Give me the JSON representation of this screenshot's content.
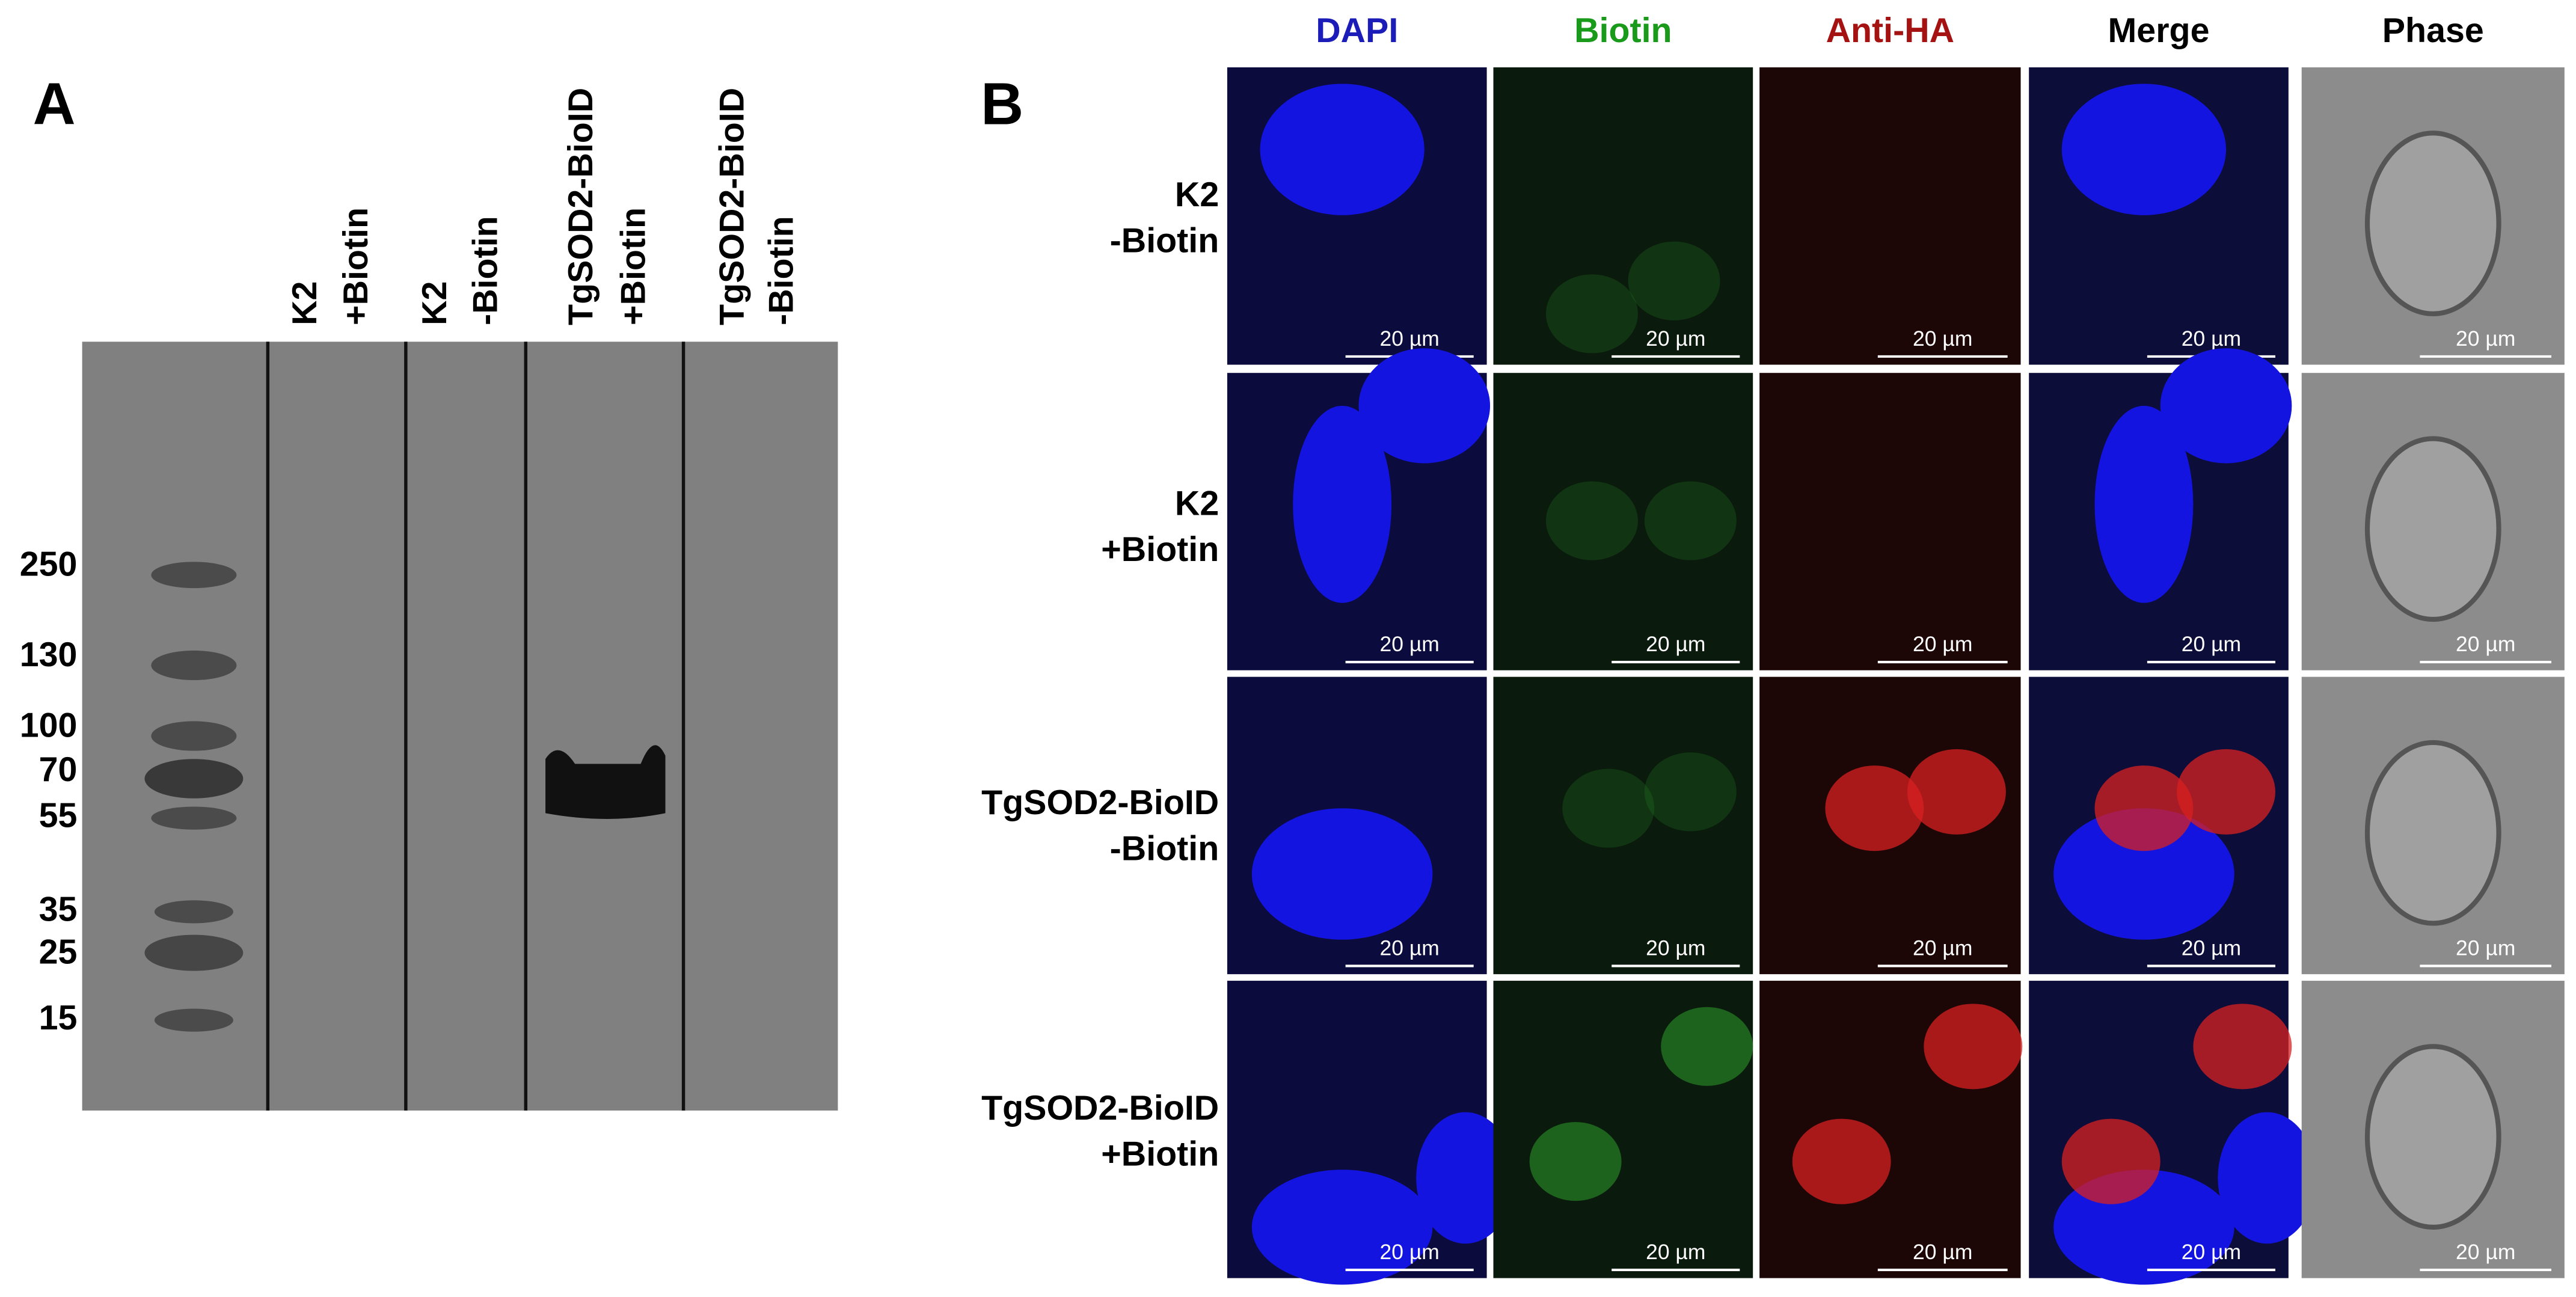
{
  "panel_a": {
    "label": "A",
    "lanes": [
      [
        "K2",
        "+Biotin"
      ],
      [
        "K2",
        "-Biotin"
      ],
      [
        "TgSOD2-BioID",
        "+Biotin"
      ],
      [
        "TgSOD2-BioID",
        "-Biotin"
      ]
    ],
    "markers": [
      250,
      130,
      100,
      70,
      55,
      35,
      25,
      15
    ]
  },
  "panel_b": {
    "label": "B",
    "columns": [
      "DAPI",
      "Biotin",
      "Anti-HA",
      "Merge",
      "Phase"
    ],
    "rows": [
      [
        "K2",
        "-Biotin"
      ],
      [
        "K2",
        "+Biotin"
      ],
      [
        "TgSOD2-BioID",
        "-Biotin"
      ],
      [
        "TgSOD2-BioID",
        "+Biotin"
      ]
    ],
    "scale_bar": "20 µm"
  }
}
